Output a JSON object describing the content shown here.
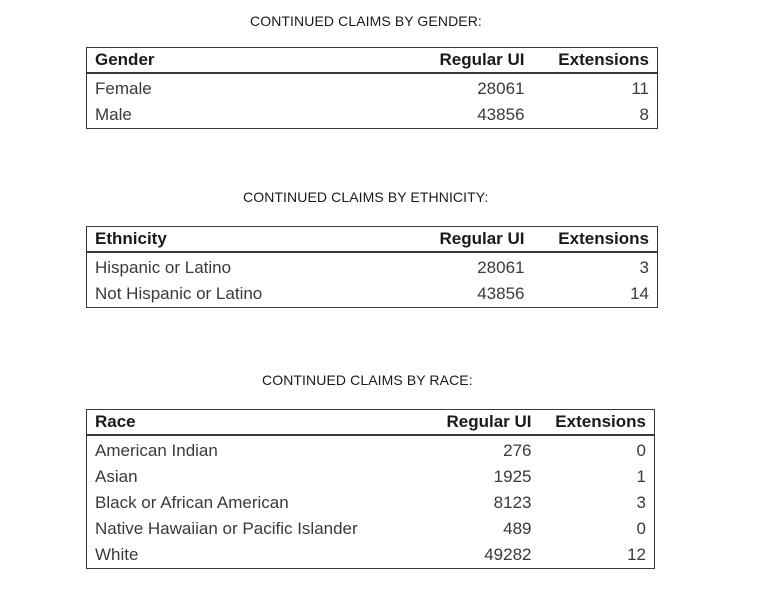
{
  "gender": {
    "title": "CONTINUED CLAIMS BY GENDER:",
    "headers": [
      "Gender",
      "Regular UI",
      "Extensions"
    ],
    "rows": [
      [
        "Female",
        "28061",
        "11"
      ],
      [
        "Male",
        "43856",
        "8"
      ]
    ]
  },
  "ethnicity": {
    "title": "CONTINUED CLAIMS BY ETHNICITY:",
    "headers": [
      "Ethnicity",
      "Regular UI",
      "Extensions"
    ],
    "rows": [
      [
        "Hispanic or Latino",
        "28061",
        "3"
      ],
      [
        "Not Hispanic or Latino",
        "43856",
        "14"
      ]
    ]
  },
  "race": {
    "title": "CONTINUED CLAIMS BY RACE:",
    "headers": [
      "Race",
      "Regular UI",
      "Extensions"
    ],
    "rows": [
      [
        "American Indian",
        "276",
        "0"
      ],
      [
        "Asian",
        "1925",
        "1"
      ],
      [
        "Black or African American",
        "8123",
        "3"
      ],
      [
        "Native Hawaiian or Pacific Islander",
        "489",
        "0"
      ],
      [
        "White",
        "49282",
        "12"
      ]
    ]
  }
}
